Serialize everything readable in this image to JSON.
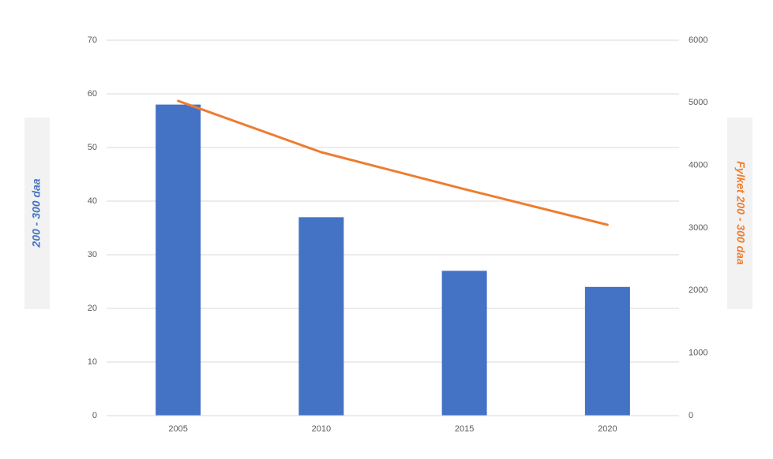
{
  "chart_data": {
    "type": "bar_line",
    "categories": [
      "2005",
      "2010",
      "2015",
      "2020"
    ],
    "series": [
      {
        "name": "200 - 300 daa",
        "color": "#4472c4",
        "type": "bar",
        "values": [
          58,
          37,
          27,
          24
        ]
      },
      {
        "name": "Fylket 200 - 300 daa",
        "color": "#ed7d31",
        "type": "line",
        "axis": "y2",
        "values": [
          5030,
          4210,
          3620,
          3050
        ]
      }
    ],
    "ylim": [
      0,
      70
    ],
    "yticks": [
      0,
      10,
      20,
      30,
      40,
      50,
      60,
      70
    ],
    "y2lim": [
      0,
      6000
    ],
    "y2ticks": [
      0,
      1000,
      2000,
      3000,
      4000,
      5000,
      6000
    ],
    "grid": true
  }
}
